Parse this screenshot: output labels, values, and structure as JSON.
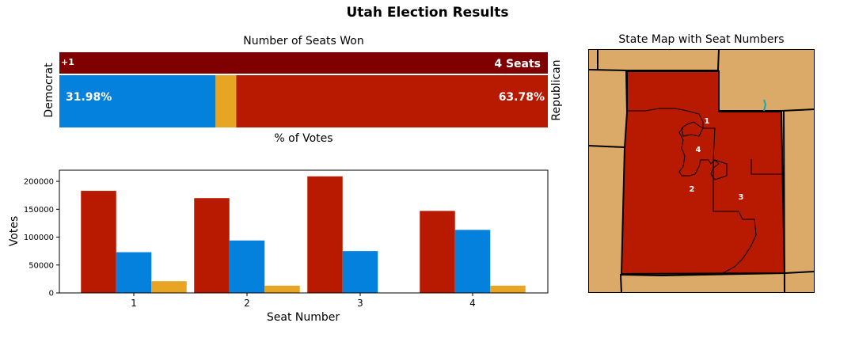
{
  "suptitle": "Utah Election Results",
  "seats_panel": {
    "title": "Number of Seats Won",
    "seat_gain_label": "+1",
    "seats_label": "4 Seats",
    "left_party": "Democrat",
    "right_party": "Republican",
    "dem_pct_label": "31.98%",
    "rep_pct_label": "63.78%",
    "xlabel": "% of Votes"
  },
  "colors": {
    "republican": "#b71a00",
    "republican_dark": "#800000",
    "democrat": "#0480dd",
    "other": "#e8a524",
    "state_fill": "#dcaa68"
  },
  "chart_data": [
    {
      "type": "bar",
      "orientation": "horizontal-stacked",
      "title": "Number of Seats Won",
      "xlabel": "% of Votes",
      "series": [
        {
          "name": "Democrat",
          "values": [
            31.98
          ]
        },
        {
          "name": "Republican",
          "values": [
            63.78
          ]
        }
      ],
      "other_share": 4.24,
      "seats": {
        "republican": 4,
        "change": "+1"
      }
    },
    {
      "type": "bar",
      "xlabel": "Seat Number",
      "ylabel": "Votes",
      "categories": [
        "1",
        "2",
        "3",
        "4"
      ],
      "series": [
        {
          "values": [
            183000,
            170000,
            209000,
            147000
          ]
        },
        {
          "values": [
            73000,
            94000,
            75000,
            113000
          ]
        },
        {
          "values": [
            21000,
            13000,
            0,
            13000
          ]
        }
      ],
      "yticks": [
        "0",
        "50000",
        "100000",
        "150000",
        "200000"
      ],
      "ylim": [
        0,
        220000
      ],
      "grid": false,
      "legend": "none"
    }
  ],
  "map_panel": {
    "title": "State Map with Seat Numbers",
    "district_labels": [
      "1",
      "4",
      "2",
      "3"
    ]
  }
}
